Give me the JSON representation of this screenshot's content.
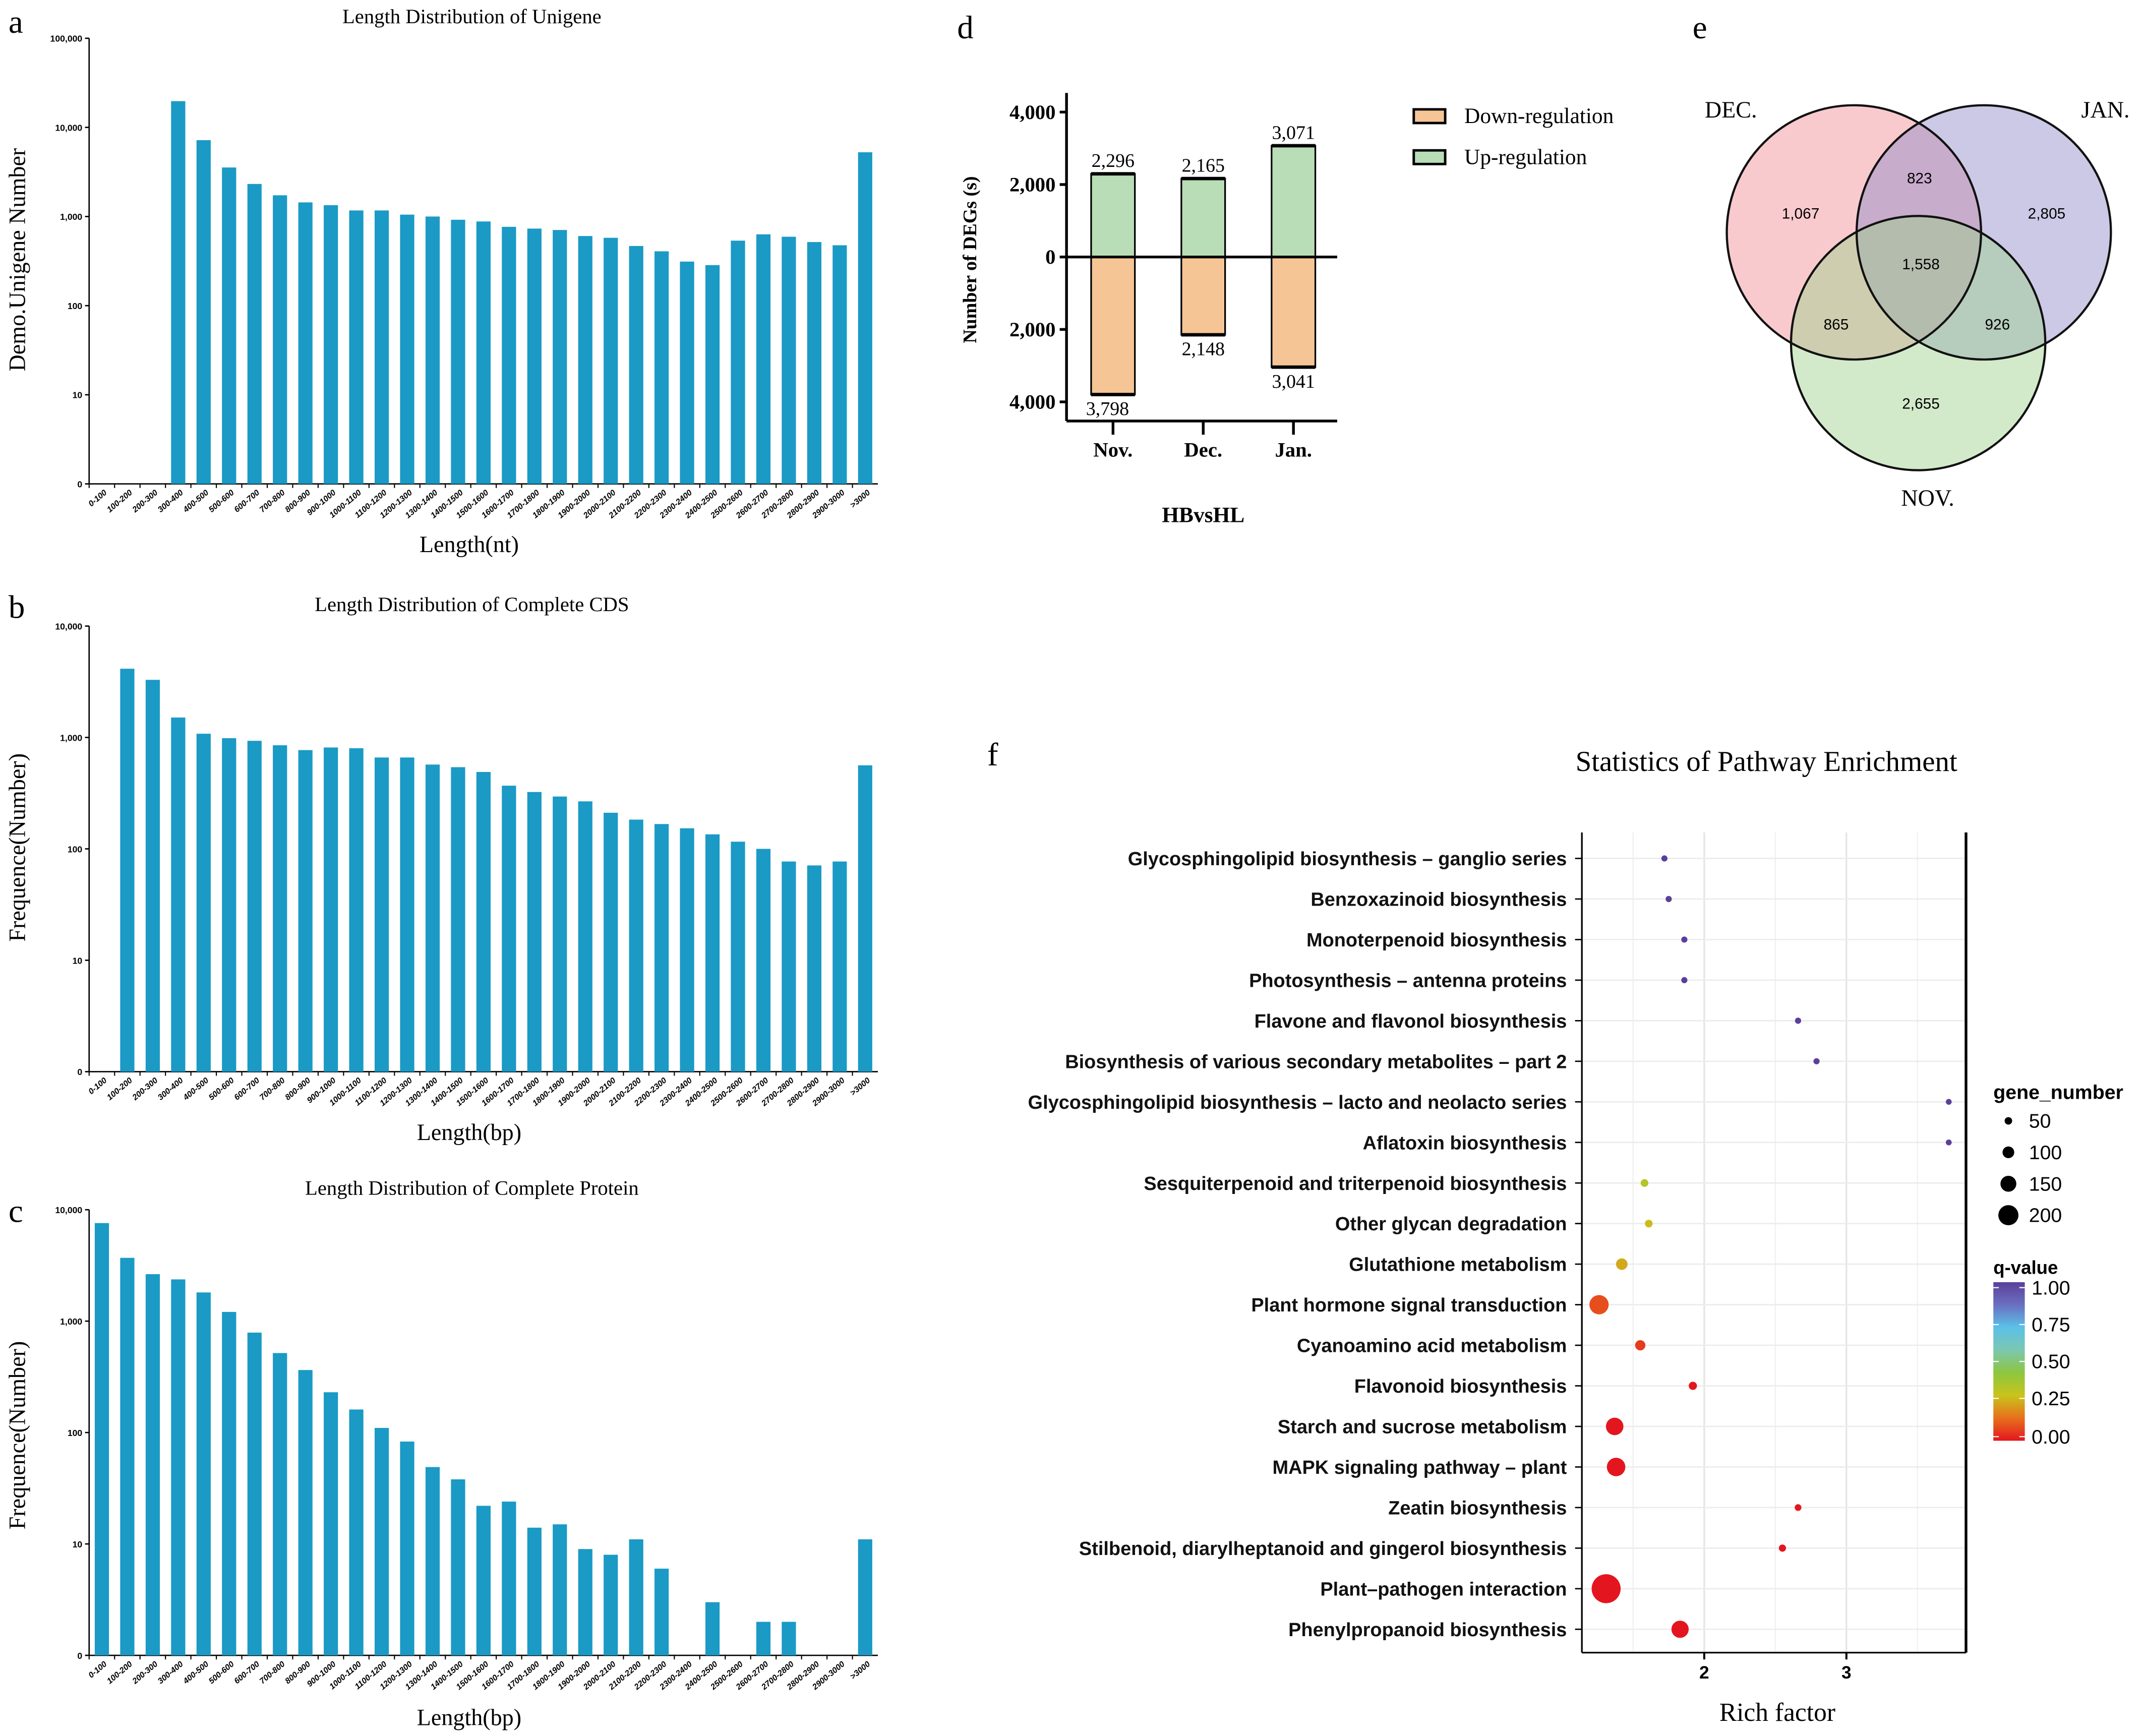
{
  "chart_data": [
    {
      "panel": "a",
      "type": "bar",
      "title": "Length Distribution of Unigene",
      "xlabel": "Length(nt)",
      "ylabel": "Demo.Unigene Number",
      "yscale": "log",
      "yticks": [
        "0",
        "10",
        "100",
        "1,000",
        "10,000",
        "100,000"
      ],
      "ylim": [
        0,
        100000
      ],
      "color": "#1a9ac5",
      "categories": [
        "0-100",
        "100-200",
        "200-300",
        "300-400",
        "400-500",
        "500-600",
        "600-700",
        "700-800",
        "800-900",
        "900-1000",
        "1000-1100",
        "1100-1200",
        "1200-1300",
        "1300-1400",
        "1400-1500",
        "1500-1600",
        "1600-1700",
        "1700-1800",
        "1800-1900",
        "1900-2000",
        "2000-2100",
        "2100-2200",
        "2200-2300",
        "2300-2400",
        "2400-2500",
        "2500-2600",
        "2600-2700",
        "2700-2800",
        "2800-2900",
        "2900-3000",
        ">3000"
      ],
      "values": [
        0,
        0,
        0,
        19700,
        7190,
        3550,
        2320,
        1730,
        1440,
        1340,
        1170,
        1170,
        1050,
        1000,
        920,
        880,
        766,
        732,
        706,
        604,
        577,
        467,
        407,
        312,
        285,
        536,
        631,
        593,
        517,
        476,
        5260
      ]
    },
    {
      "panel": "b",
      "type": "bar",
      "title": "Length Distribution of Complete CDS",
      "xlabel": "Length(bp)",
      "ylabel": "Frequence(Number)",
      "yscale": "log",
      "yticks": [
        "0",
        "10",
        "100",
        "1,000",
        "10,000"
      ],
      "ylim": [
        0,
        10000
      ],
      "color": "#1a9ac5",
      "categories": [
        "0-100",
        "100-200",
        "200-300",
        "300-400",
        "400-500",
        "500-600",
        "600-700",
        "700-800",
        "800-900",
        "900-1000",
        "1000-1100",
        "1100-1200",
        "1200-1300",
        "1300-1400",
        "1400-1500",
        "1500-1600",
        "1600-1700",
        "1700-1800",
        "1800-1900",
        "1900-2000",
        "2000-2100",
        "2100-2200",
        "2200-2300",
        "2300-2400",
        "2400-2500",
        "2500-2600",
        "2600-2700",
        "2700-2800",
        "2800-2900",
        "2900-3000",
        ">3000"
      ],
      "values": [
        0,
        4140,
        3290,
        1510,
        1080,
        985,
        933,
        851,
        770,
        813,
        800,
        661,
        661,
        571,
        541,
        490,
        369,
        324,
        295,
        267,
        211,
        183,
        167,
        153,
        135,
        116,
        100,
        77,
        71,
        77,
        562
      ]
    },
    {
      "panel": "c",
      "type": "bar",
      "title": "Length Distribution of Complete Protein",
      "xlabel": "Length(bp)",
      "ylabel": "Frequence(Number)",
      "yscale": "log",
      "yticks": [
        "0",
        "10",
        "100",
        "1,000",
        "10,000"
      ],
      "ylim": [
        0,
        10000
      ],
      "color": "#1a9ac5",
      "categories": [
        "0-100",
        "100-200",
        "200-300",
        "300-400",
        "400-500",
        "500-600",
        "600-700",
        "700-800",
        "800-900",
        "900-1000",
        "1000-1100",
        "1100-1200",
        "1200-1300",
        "1300-1400",
        "1400-1500",
        "1500-1600",
        "1600-1700",
        "1700-1800",
        "1800-1900",
        "1900-2000",
        "2000-2100",
        "2100-2200",
        "2200-2300",
        "2300-2400",
        "2400-2500",
        "2500-2600",
        "2600-2700",
        "2700-2800",
        "2800-2900",
        "2900-3000",
        ">3000"
      ],
      "values": [
        7590,
        3700,
        2640,
        2370,
        1810,
        1210,
        789,
        517,
        364,
        230,
        161,
        110,
        83,
        49,
        38,
        22,
        24,
        14,
        15,
        9,
        8,
        11,
        6,
        0,
        3,
        0,
        2,
        2,
        0,
        0,
        11
      ]
    },
    {
      "panel": "d",
      "type": "bar",
      "xlabel": "HBvsHL",
      "ylabel": "Number of DEGs (s)",
      "categories": [
        "Nov.",
        "Dec.",
        "Jan."
      ],
      "yticks": [
        {
          "value": 4000,
          "label": "4,000"
        },
        {
          "value": 2000,
          "label": "2,000"
        },
        {
          "value": 0,
          "label": "0"
        },
        {
          "value": -2000,
          "label": "2,000"
        },
        {
          "value": -4000,
          "label": "4,000"
        }
      ],
      "ylim": [
        -4400,
        4600
      ],
      "legend_position": "right",
      "series": [
        {
          "name": "Down-regulation",
          "color": "#f6c596",
          "values": [
            3798,
            2148,
            3041
          ],
          "labels": [
            "3,798",
            "2,148",
            "3,041"
          ]
        },
        {
          "name": "Up-regulation",
          "color": "#b9ddb7",
          "values": [
            2296,
            2165,
            3071
          ],
          "labels": [
            "2,296",
            "2,165",
            "3,071"
          ]
        }
      ]
    },
    {
      "panel": "e",
      "type": "venn",
      "sets": [
        {
          "name": "DEC.",
          "color": "#f08a92"
        },
        {
          "name": "JAN.",
          "color": "#8f88c8"
        },
        {
          "name": "NOV.",
          "color": "#9bd08a"
        }
      ],
      "regions": [
        {
          "sets": [
            "DEC."
          ],
          "value": 1067,
          "label": "1,067"
        },
        {
          "sets": [
            "DEC.",
            "JAN."
          ],
          "value": 823,
          "label": "823"
        },
        {
          "sets": [
            "JAN."
          ],
          "value": 2805,
          "label": "2,805"
        },
        {
          "sets": [
            "DEC.",
            "JAN.",
            "NOV."
          ],
          "value": 1558,
          "label": "1,558"
        },
        {
          "sets": [
            "DEC.",
            "NOV."
          ],
          "value": 865,
          "label": "865"
        },
        {
          "sets": [
            "JAN.",
            "NOV."
          ],
          "value": 926,
          "label": "926"
        },
        {
          "sets": [
            "NOV."
          ],
          "value": 2655,
          "label": "2,655"
        }
      ]
    },
    {
      "panel": "f",
      "type": "scatter",
      "title": "Statistics of Pathway Enrichment",
      "xlabel": "Rich factor",
      "xticks": [
        "2",
        "3"
      ],
      "xlim": [
        1.13,
        3.83
      ],
      "grid": true,
      "legend_position": "right",
      "size_legend": {
        "title": "gene_number",
        "values": [
          50,
          100,
          150,
          200
        ],
        "labels": [
          "50",
          "100",
          "150",
          "200"
        ]
      },
      "color_legend": {
        "title": "q-value",
        "labels": [
          "1.00",
          "0.75",
          "0.50",
          "0.25",
          "0.00"
        ],
        "colorscale": [
          "#e3161f",
          "#e8701c",
          "#c8c41b",
          "#8dc63f",
          "#7cc7b0",
          "#5ac1e8",
          "#6b6fc0",
          "#5b3f9b"
        ]
      },
      "pathways": [
        {
          "name": "Glycosphingolipid biosynthesis – ganglio series",
          "rich_factor": 1.72,
          "gene_number": 34,
          "q_value": 1.0
        },
        {
          "name": "Benzoxazinoid biosynthesis",
          "rich_factor": 1.75,
          "gene_number": 34,
          "q_value": 1.0
        },
        {
          "name": "Monoterpenoid biosynthesis",
          "rich_factor": 1.86,
          "gene_number": 34,
          "q_value": 1.0
        },
        {
          "name": "Photosynthesis – antenna proteins",
          "rich_factor": 1.86,
          "gene_number": 34,
          "q_value": 1.0
        },
        {
          "name": "Flavone and flavonol biosynthesis",
          "rich_factor": 2.66,
          "gene_number": 34,
          "q_value": 1.0
        },
        {
          "name": "Biosynthesis of various secondary metabolites – part 2",
          "rich_factor": 2.79,
          "gene_number": 34,
          "q_value": 1.0
        },
        {
          "name": "Glycosphingolipid biosynthesis – lacto and neolacto series",
          "rich_factor": 3.72,
          "gene_number": 30,
          "q_value": 1.0
        },
        {
          "name": "Aflatoxin biosynthesis",
          "rich_factor": 3.72,
          "gene_number": 30,
          "q_value": 1.0
        },
        {
          "name": "Sesquiterpenoid and triterpenoid biosynthesis",
          "rich_factor": 1.58,
          "gene_number": 52,
          "q_value": 0.33
        },
        {
          "name": "Other glycan degradation",
          "rich_factor": 1.61,
          "gene_number": 52,
          "q_value": 0.27
        },
        {
          "name": "Glutathione metabolism",
          "rich_factor": 1.42,
          "gene_number": 98,
          "q_value": 0.24
        },
        {
          "name": "Plant hormone signal transduction",
          "rich_factor": 1.26,
          "gene_number": 190,
          "q_value": 0.09
        },
        {
          "name": "Cyanoamino acid metabolism",
          "rich_factor": 1.55,
          "gene_number": 83,
          "q_value": 0.06
        },
        {
          "name": "Flavonoid biosynthesis",
          "rich_factor": 1.92,
          "gene_number": 58,
          "q_value": 0.0
        },
        {
          "name": "Starch and sucrose metabolism",
          "rich_factor": 1.37,
          "gene_number": 169,
          "q_value": 0.0
        },
        {
          "name": "MAPK signaling pathway – plant",
          "rich_factor": 1.38,
          "gene_number": 181,
          "q_value": 0.0
        },
        {
          "name": "Zeatin biosynthesis",
          "rich_factor": 2.66,
          "gene_number": 40,
          "q_value": 0.0
        },
        {
          "name": "Stilbenoid, diarylheptanoid and gingerol biosynthesis",
          "rich_factor": 2.55,
          "gene_number": 46,
          "q_value": 0.0
        },
        {
          "name": "Plant–pathogen interaction",
          "rich_factor": 1.31,
          "gene_number": 306,
          "q_value": 0.0
        },
        {
          "name": "Phenylpropanoid biosynthesis",
          "rich_factor": 1.83,
          "gene_number": 166,
          "q_value": 0.0
        }
      ]
    }
  ]
}
